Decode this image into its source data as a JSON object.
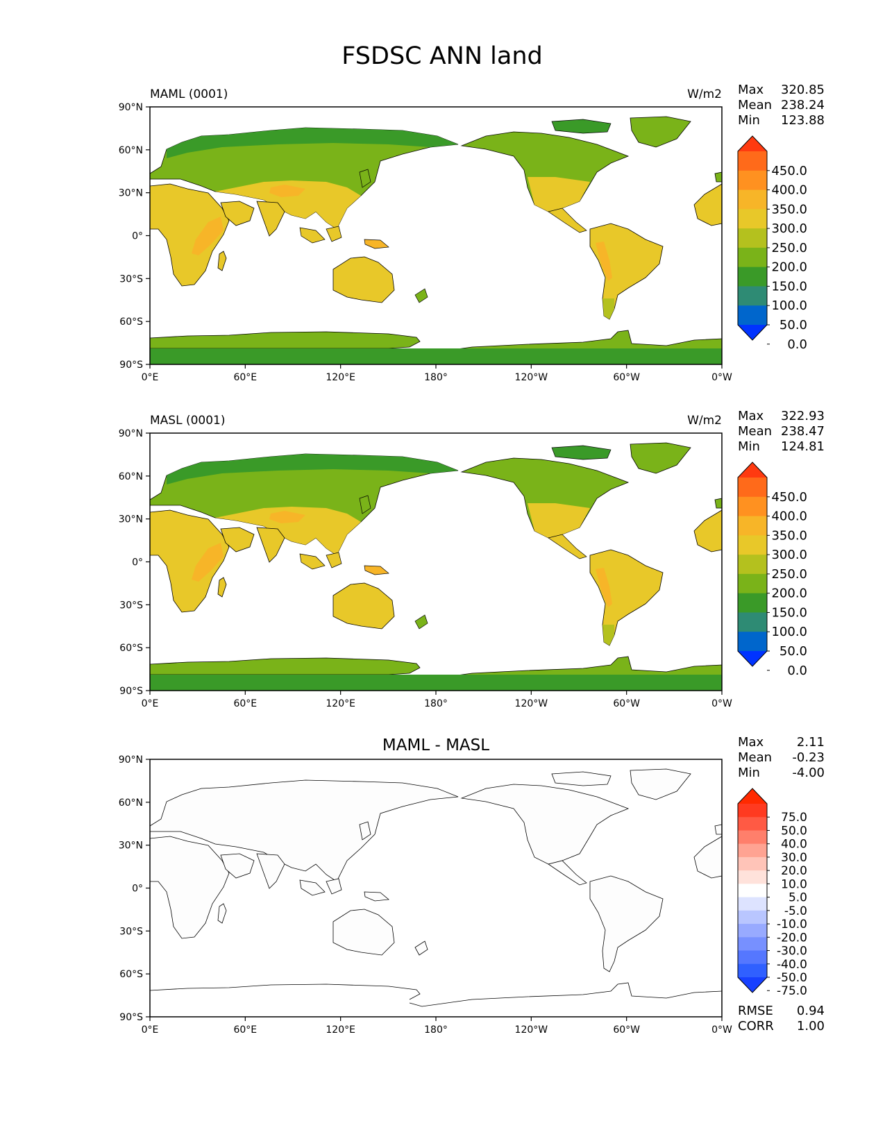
{
  "figure": {
    "title": "FSDSC ANN land"
  },
  "colors": {
    "bg": "#ffffff",
    "ocean": "#ffffff",
    "coast": "#000000",
    "abs_scale": [
      "#0033ff",
      "#0066cc",
      "#2e8b74",
      "#3a9a28",
      "#7ab319",
      "#b4c11e",
      "#e8c829",
      "#f7b528",
      "#ff9120",
      "#ff6a1a",
      "#ff3a10"
    ],
    "diff_scale": [
      "#1740ff",
      "#3060ff",
      "#5577ff",
      "#7790ff",
      "#98aaff",
      "#b9c6ff",
      "#dde3ff",
      "#ffffff",
      "#ffe2db",
      "#ffc4b8",
      "#ffa392",
      "#ff7f6b",
      "#ff5a44",
      "#ff3a20",
      "#ff2a00"
    ],
    "diff_fill": "#fdfdfd"
  },
  "axes": {
    "lat_ticks": [
      "90°N",
      "60°N",
      "30°N",
      "0°",
      "30°S",
      "60°S",
      "90°S"
    ],
    "lon_ticks": [
      "0°E",
      "60°E",
      "120°E",
      "180°",
      "120°W",
      "60°W",
      "0°W"
    ]
  },
  "panels": [
    {
      "name": "MAML (0001)",
      "units": "W/m2",
      "stats": [
        {
          "label": "Max",
          "value": "320.85"
        },
        {
          "label": "Mean",
          "value": "238.24"
        },
        {
          "label": "Min",
          "value": "123.88"
        }
      ],
      "colorbar": {
        "type": "abs",
        "labels": [
          "450.0",
          "400.0",
          "350.0",
          "300.0",
          "250.0",
          "200.0",
          "150.0",
          "100.0",
          "50.0",
          "0.0"
        ]
      }
    },
    {
      "name": "MASL (0001)",
      "units": "W/m2",
      "stats": [
        {
          "label": "Max",
          "value": "322.93"
        },
        {
          "label": "Mean",
          "value": "238.47"
        },
        {
          "label": "Min",
          "value": "124.81"
        }
      ],
      "colorbar": {
        "type": "abs",
        "labels": [
          "450.0",
          "400.0",
          "350.0",
          "300.0",
          "250.0",
          "200.0",
          "150.0",
          "100.0",
          "50.0",
          "0.0"
        ]
      }
    },
    {
      "title": "MAML - MASL",
      "stats": [
        {
          "label": "Max",
          "value": "2.11"
        },
        {
          "label": "Mean",
          "value": "-0.23"
        },
        {
          "label": "Min",
          "value": "-4.00"
        }
      ],
      "colorbar": {
        "type": "diff",
        "labels": [
          "75.0",
          "50.0",
          "40.0",
          "30.0",
          "20.0",
          "10.0",
          "5.0",
          "-5.0",
          "-10.0",
          "-20.0",
          "-30.0",
          "-40.0",
          "-50.0",
          "-75.0"
        ]
      },
      "metrics": [
        {
          "label": "RMSE",
          "value": "0.94"
        },
        {
          "label": "CORR",
          "value": "1.00"
        }
      ]
    }
  ]
}
